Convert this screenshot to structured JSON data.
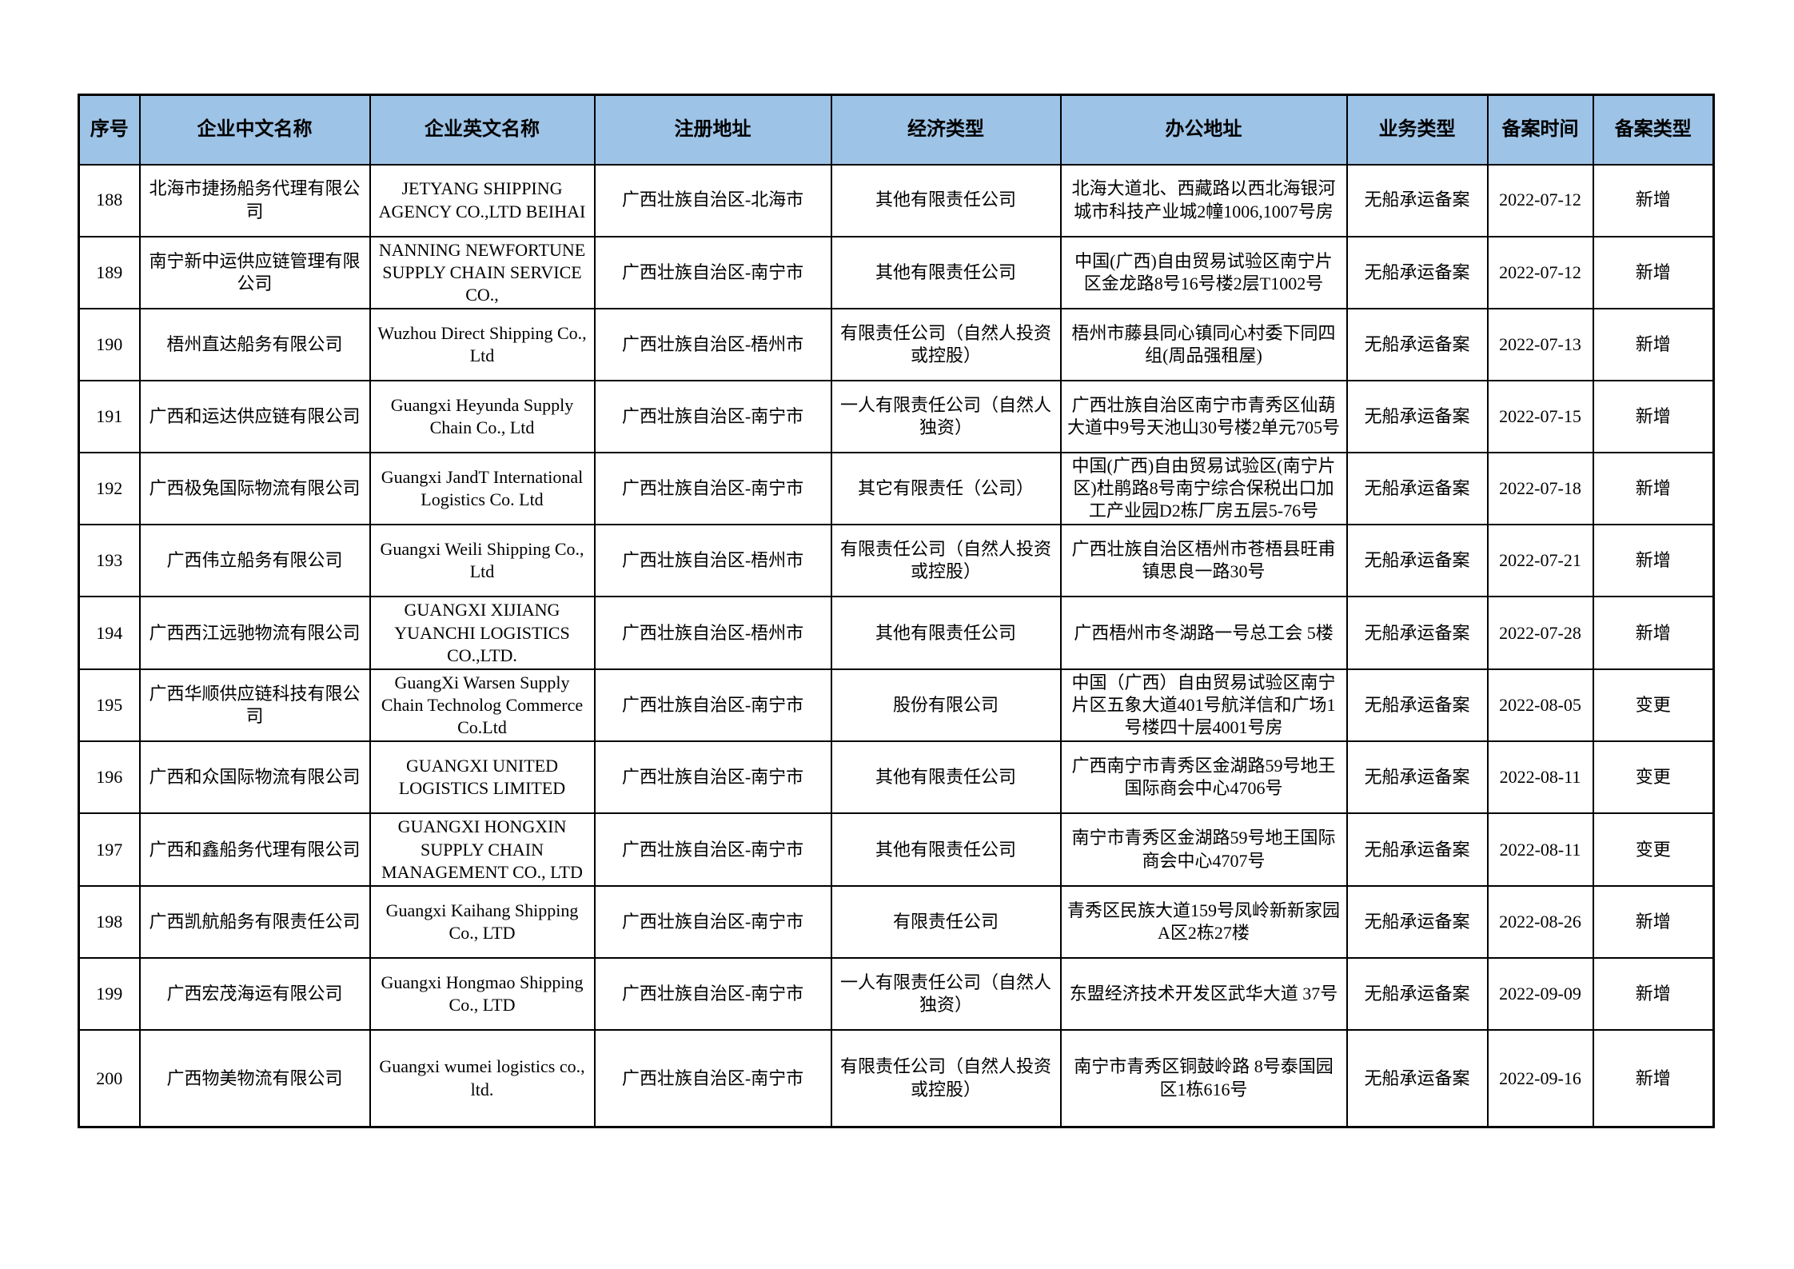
{
  "page": {
    "background_color": "#ffffff"
  },
  "table": {
    "header_bg_color": "#9DC3E6",
    "border_color": "#000000",
    "columns": [
      "序号",
      "企业中文名称",
      "企业英文名称",
      "注册地址",
      "经济类型",
      "办公地址",
      "业务类型",
      "备案时间",
      "备案类型"
    ],
    "row_keys": [
      "no",
      "name_cn",
      "name_en",
      "reg_address",
      "economic_type",
      "office_address",
      "business_type",
      "record_date",
      "record_type"
    ],
    "rows": [
      {
        "no": "188",
        "name_cn": "北海市捷扬船务代理有限公司",
        "name_en": "JETYANG SHIPPING AGENCY CO.,LTD BEIHAI",
        "reg_address": "广西壮族自治区-北海市",
        "economic_type": "其他有限责任公司",
        "office_address": "北海大道北、西藏路以西北海银河城市科技产业城2幢1006,1007号房",
        "business_type": "无船承运备案",
        "record_date": "2022-07-12",
        "record_type": "新增"
      },
      {
        "no": "189",
        "name_cn": "南宁新中运供应链管理有限公司",
        "name_en": "NANNING NEWFORTUNE SUPPLY CHAIN SERVICE CO.,",
        "reg_address": "广西壮族自治区-南宁市",
        "economic_type": "其他有限责任公司",
        "office_address": "中国(广西)自由贸易试验区南宁片区金龙路8号16号楼2层T1002号",
        "business_type": "无船承运备案",
        "record_date": "2022-07-12",
        "record_type": "新增"
      },
      {
        "no": "190",
        "name_cn": "梧州直达船务有限公司",
        "name_en": "Wuzhou Direct Shipping Co., Ltd",
        "reg_address": "广西壮族自治区-梧州市",
        "economic_type": "有限责任公司（自然人投资或控股）",
        "office_address": "梧州市藤县同心镇同心村委下同四组(周品强租屋)",
        "business_type": "无船承运备案",
        "record_date": "2022-07-13",
        "record_type": "新增"
      },
      {
        "no": "191",
        "name_cn": "广西和运达供应链有限公司",
        "name_en": "Guangxi Heyunda Supply Chain Co., Ltd",
        "reg_address": "广西壮族自治区-南宁市",
        "economic_type": "一人有限责任公司（自然人独资）",
        "office_address": "广西壮族自治区南宁市青秀区仙葫大道中9号天池山30号楼2单元705号",
        "business_type": "无船承运备案",
        "record_date": "2022-07-15",
        "record_type": "新增"
      },
      {
        "no": "192",
        "name_cn": "广西极兔国际物流有限公司",
        "name_en": "Guangxi JandT International Logistics Co. Ltd",
        "reg_address": "广西壮族自治区-南宁市",
        "economic_type": "其它有限责任（公司）",
        "office_address": "中国(广西)自由贸易试验区(南宁片区)杜鹃路8号南宁综合保税出口加工产业园D2栋厂房五层5-76号",
        "business_type": "无船承运备案",
        "record_date": "2022-07-18",
        "record_type": "新增"
      },
      {
        "no": "193",
        "name_cn": "广西伟立船务有限公司",
        "name_en": "Guangxi Weili Shipping Co., Ltd",
        "reg_address": "广西壮族自治区-梧州市",
        "economic_type": "有限责任公司（自然人投资或控股）",
        "office_address": "广西壮族自治区梧州市苍梧县旺甫镇思良一路30号",
        "business_type": "无船承运备案",
        "record_date": "2022-07-21",
        "record_type": "新增"
      },
      {
        "no": "194",
        "name_cn": "广西西江远驰物流有限公司",
        "name_en": "GUANGXI XIJIANG YUANCHI LOGISTICS CO.,LTD.",
        "reg_address": "广西壮族自治区-梧州市",
        "economic_type": "其他有限责任公司",
        "office_address": "广西梧州市冬湖路一号总工会 5楼",
        "business_type": "无船承运备案",
        "record_date": "2022-07-28",
        "record_type": "新增"
      },
      {
        "no": "195",
        "name_cn": "广西华顺供应链科技有限公司",
        "name_en": "GuangXi Warsen Supply Chain Technolog Commerce Co.Ltd",
        "reg_address": "广西壮族自治区-南宁市",
        "economic_type": "股份有限公司",
        "office_address": "中国（广西）自由贸易试验区南宁片区五象大道401号航洋信和广场1号楼四十层4001号房",
        "business_type": "无船承运备案",
        "record_date": "2022-08-05",
        "record_type": "变更"
      },
      {
        "no": "196",
        "name_cn": "广西和众国际物流有限公司",
        "name_en": "GUANGXI UNITED LOGISTICS LIMITED",
        "reg_address": "广西壮族自治区-南宁市",
        "economic_type": "其他有限责任公司",
        "office_address": "广西南宁市青秀区金湖路59号地王国际商会中心4706号",
        "business_type": "无船承运备案",
        "record_date": "2022-08-11",
        "record_type": "变更"
      },
      {
        "no": "197",
        "name_cn": "广西和鑫船务代理有限公司",
        "name_en": "GUANGXI HONGXIN SUPPLY CHAIN MANAGEMENT CO., LTD",
        "reg_address": "广西壮族自治区-南宁市",
        "economic_type": "其他有限责任公司",
        "office_address": "南宁市青秀区金湖路59号地王国际商会中心4707号",
        "business_type": "无船承运备案",
        "record_date": "2022-08-11",
        "record_type": "变更"
      },
      {
        "no": "198",
        "name_cn": "广西凯航船务有限责任公司",
        "name_en": "Guangxi Kaihang Shipping Co., LTD",
        "reg_address": "广西壮族自治区-南宁市",
        "economic_type": "有限责任公司",
        "office_address": "青秀区民族大道159号凤岭新新家园A区2栋27楼",
        "business_type": "无船承运备案",
        "record_date": "2022-08-26",
        "record_type": "新增"
      },
      {
        "no": "199",
        "name_cn": "广西宏茂海运有限公司",
        "name_en": "Guangxi Hongmao Shipping Co., LTD",
        "reg_address": "广西壮族自治区-南宁市",
        "economic_type": "一人有限责任公司（自然人独资）",
        "office_address": "东盟经济技术开发区武华大道 37号",
        "business_type": "无船承运备案",
        "record_date": "2022-09-09",
        "record_type": "新增"
      },
      {
        "no": "200",
        "name_cn": "广西物美物流有限公司",
        "name_en": "Guangxi wumei logistics co., ltd.",
        "reg_address": "广西壮族自治区-南宁市",
        "economic_type": "有限责任公司（自然人投资或控股）",
        "office_address": "南宁市青秀区铜鼓岭路 8号泰国园区1栋616号",
        "business_type": "无船承运备案",
        "record_date": "2022-09-16",
        "record_type": "新增"
      }
    ]
  }
}
